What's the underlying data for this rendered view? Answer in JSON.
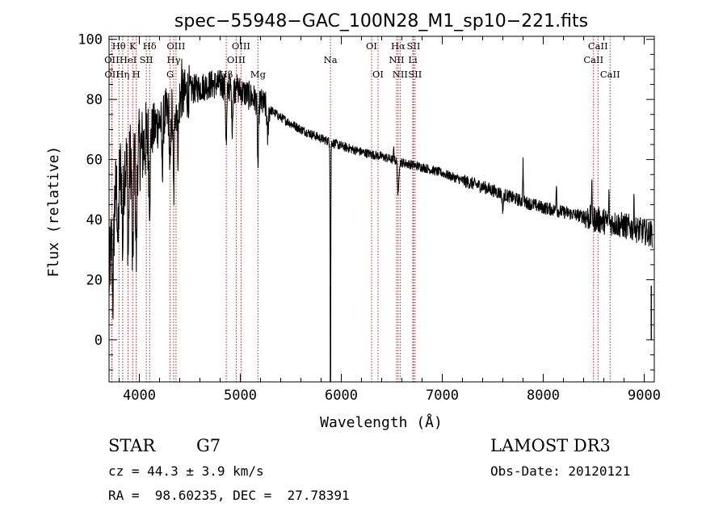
{
  "chart_data": {
    "type": "line",
    "title": "spec−55948−GAC_100N28_M1_sp10−221.fits",
    "xlabel": "Wavelength (Å)",
    "ylabel": "Flux (relative)",
    "xlim": [
      3700,
      9100
    ],
    "ylim": [
      -14,
      101
    ],
    "x_ticks": [
      4000,
      5000,
      6000,
      7000,
      8000,
      9000
    ],
    "y_ticks": [
      0,
      20,
      40,
      60,
      80,
      100
    ],
    "grid": false,
    "continuum": [
      [
        3700,
        20
      ],
      [
        3750,
        45
      ],
      [
        3800,
        55
      ],
      [
        3850,
        58
      ],
      [
        3900,
        60
      ],
      [
        3950,
        62
      ],
      [
        4000,
        63
      ],
      [
        4050,
        65
      ],
      [
        4100,
        68
      ],
      [
        4200,
        73
      ],
      [
        4300,
        76
      ],
      [
        4400,
        80
      ],
      [
        4500,
        83
      ],
      [
        4600,
        84
      ],
      [
        4700,
        85
      ],
      [
        4800,
        85
      ],
      [
        4900,
        84
      ],
      [
        5000,
        83
      ],
      [
        5100,
        81
      ],
      [
        5200,
        79
      ],
      [
        5400,
        74
      ],
      [
        5600,
        70
      ],
      [
        5800,
        67
      ],
      [
        6000,
        64.5
      ],
      [
        6200,
        62.5
      ],
      [
        6400,
        61
      ],
      [
        6600,
        59
      ],
      [
        6800,
        57.5
      ],
      [
        7000,
        55.5
      ],
      [
        7200,
        53
      ],
      [
        7400,
        51
      ],
      [
        7600,
        48.5
      ],
      [
        7800,
        46
      ],
      [
        8000,
        44
      ],
      [
        8200,
        42.5
      ],
      [
        8400,
        41
      ],
      [
        8600,
        39.5
      ],
      [
        8800,
        38
      ],
      [
        9000,
        36
      ],
      [
        9100,
        35
      ]
    ],
    "absorption_features": [
      {
        "wl": 3740,
        "depth": 25
      },
      {
        "wl": 3790,
        "depth": 22
      },
      {
        "wl": 3835,
        "depth": 26
      },
      {
        "wl": 3890,
        "depth": 30
      },
      {
        "wl": 3934,
        "depth": 40
      },
      {
        "wl": 3969,
        "depth": 35
      },
      {
        "wl": 4102,
        "depth": 22
      },
      {
        "wl": 4227,
        "depth": 15
      },
      {
        "wl": 4305,
        "depth": 22
      },
      {
        "wl": 4340,
        "depth": 30
      },
      {
        "wl": 4383,
        "depth": 15
      },
      {
        "wl": 4861,
        "depth": 20
      },
      {
        "wl": 4920,
        "depth": 12
      },
      {
        "wl": 5175,
        "depth": 22
      },
      {
        "wl": 5270,
        "depth": 10
      },
      {
        "wl": 5893,
        "depth": 78
      },
      {
        "wl": 6563,
        "depth": 12
      },
      {
        "wl": 7600,
        "depth": 5
      }
    ],
    "emission_features": [
      {
        "wl": 4420,
        "height": 8
      },
      {
        "wl": 4960,
        "height": 6
      },
      {
        "wl": 6520,
        "height": 4
      },
      {
        "wl": 7800,
        "height": 14
      },
      {
        "wl": 8130,
        "height": 10
      },
      {
        "wl": 8480,
        "height": 12
      },
      {
        "wl": 8650,
        "height": 8
      },
      {
        "wl": 8900,
        "height": 10
      }
    ],
    "line_markers": [
      {
        "label": "Hθ",
        "wl": 3798,
        "row": 0
      },
      {
        "label": "OII",
        "wl": 3727,
        "row": 1
      },
      {
        "label": "OII",
        "wl": 3729,
        "row": 2
      },
      {
        "label": "HeI",
        "wl": 3889,
        "row": 1
      },
      {
        "label": "Hη",
        "wl": 3835,
        "row": 2
      },
      {
        "label": "K",
        "wl": 3934,
        "row": 0
      },
      {
        "label": "SII",
        "wl": 4069,
        "row": 1
      },
      {
        "label": "H",
        "wl": 3969,
        "row": 2
      },
      {
        "label": "Hδ",
        "wl": 4102,
        "row": 0
      },
      {
        "label": "OIII",
        "wl": 4363,
        "row": 0
      },
      {
        "label": "Hγ",
        "wl": 4340,
        "row": 1
      },
      {
        "label": "G",
        "wl": 4305,
        "row": 2
      },
      {
        "label": "Hβ",
        "wl": 4861,
        "row": 2
      },
      {
        "label": "OIII",
        "wl": 5007,
        "row": 0
      },
      {
        "label": "OIII",
        "wl": 4959,
        "row": 1
      },
      {
        "label": "Mg",
        "wl": 5175,
        "row": 2
      },
      {
        "label": "Na",
        "wl": 5893,
        "row": 1
      },
      {
        "label": "OI",
        "wl": 6300,
        "row": 0
      },
      {
        "label": "OI",
        "wl": 6364,
        "row": 2
      },
      {
        "label": "Hα",
        "wl": 6563,
        "row": 0
      },
      {
        "label": "NII",
        "wl": 6548,
        "row": 1
      },
      {
        "label": "NII",
        "wl": 6583,
        "row": 2
      },
      {
        "label": "SII",
        "wl": 6716,
        "row": 0
      },
      {
        "label": "Li",
        "wl": 6708,
        "row": 1
      },
      {
        "label": "SII",
        "wl": 6731,
        "row": 2
      },
      {
        "label": "CaII",
        "wl": 8542,
        "row": 0
      },
      {
        "label": "CaII",
        "wl": 8498,
        "row": 1
      },
      {
        "label": "CaII",
        "wl": 8662,
        "row": 2
      }
    ]
  },
  "info": {
    "obj_class": "STAR",
    "subclass": "G7",
    "survey": "LAMOST DR3",
    "cz": "cz = 44.3 ± 3.9 km/s",
    "obs_date": "Obs-Date: 20120121",
    "coords": "RA =  98.60235, DEC =  27.78391"
  },
  "colors": {
    "marker_line": "#b22222",
    "spectrum": "#000000"
  }
}
